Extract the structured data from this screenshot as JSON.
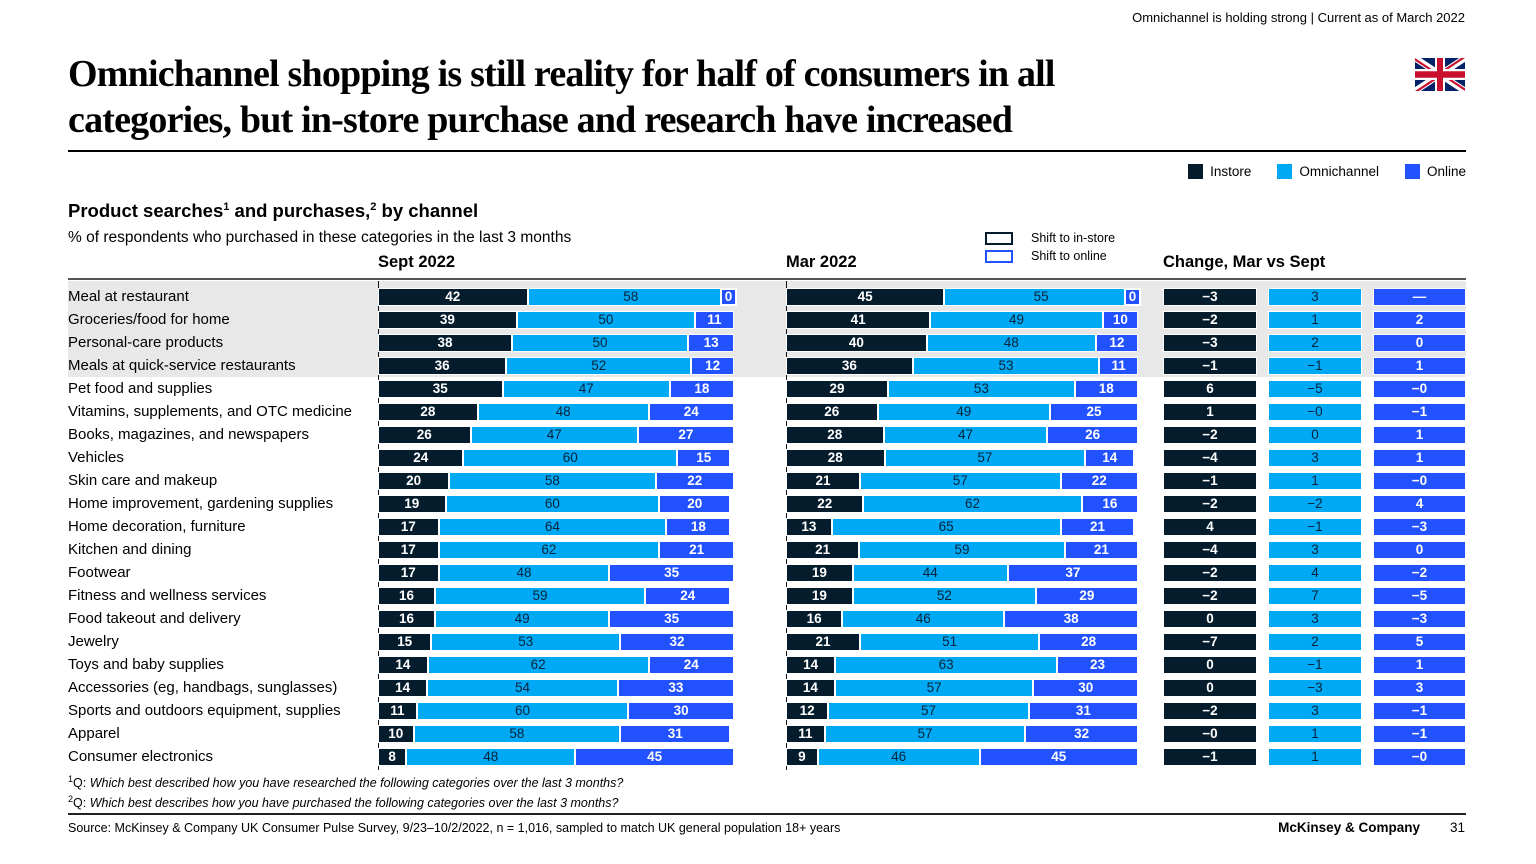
{
  "colors": {
    "instore": "#051c2c",
    "omnichannel": "#00a9f4",
    "online": "#2251ff",
    "band": "#e8e8e8"
  },
  "header": {
    "note": "Omnichannel is holding strong | Current as of March 2022",
    "title_line1": "Omnichannel shopping is still reality for half of consumers in all",
    "title_line2": "categories, but in-store purchase and research have increased",
    "flag": "uk-flag"
  },
  "legend": {
    "items": [
      {
        "label": "Instore"
      },
      {
        "label": "Omnichannel"
      },
      {
        "label": "Online"
      }
    ]
  },
  "shift_legend": {
    "items": [
      {
        "label": "Shift to in-store"
      },
      {
        "label": "Shift to online"
      }
    ]
  },
  "chart": {
    "heading_part1": "Product searches",
    "heading_sup1": "1",
    "heading_part2": " and purchases,",
    "heading_sup2": "2",
    "heading_part3": " by channel",
    "subtitle": "% of respondents who purchased in these categories in the last 3 months",
    "col_sept": "Sept 2022",
    "col_mar": "Mar 2022",
    "col_change": "Change, Mar vs Sept"
  },
  "chart_data": {
    "type": "bar",
    "orientation": "horizontal",
    "stacked": true,
    "unit": "%",
    "groups": [
      "Sept 2022",
      "Mar 2022",
      "Change, Mar vs Sept"
    ],
    "series_names": [
      "Instore",
      "Omnichannel",
      "Online"
    ],
    "highlighted_rows": [
      0,
      1,
      2,
      3
    ],
    "rows": [
      {
        "category": "Meal at restaurant",
        "sept": [
          42,
          58,
          0
        ],
        "mar": [
          45,
          55,
          0
        ],
        "change": [
          "−3",
          "3",
          "—"
        ]
      },
      {
        "category": "Groceries/food for home",
        "sept": [
          39,
          50,
          11
        ],
        "mar": [
          41,
          49,
          10
        ],
        "change": [
          "−2",
          "1",
          "2"
        ]
      },
      {
        "category": "Personal-care products",
        "sept": [
          38,
          50,
          13
        ],
        "mar": [
          40,
          48,
          12
        ],
        "change": [
          "−3",
          "2",
          "0"
        ]
      },
      {
        "category": "Meals at quick-service restaurants",
        "sept": [
          36,
          52,
          12
        ],
        "mar": [
          36,
          53,
          11
        ],
        "change": [
          "−1",
          "−1",
          "1"
        ]
      },
      {
        "category": "Pet food and supplies",
        "sept": [
          35,
          47,
          18
        ],
        "mar": [
          29,
          53,
          18
        ],
        "change": [
          "6",
          "−5",
          "−0"
        ]
      },
      {
        "category": "Vitamins, supplements, and OTC medicine",
        "sept": [
          28,
          48,
          24
        ],
        "mar": [
          26,
          49,
          25
        ],
        "change": [
          "1",
          "−0",
          "−1"
        ]
      },
      {
        "category": "Books, magazines, and newspapers",
        "sept": [
          26,
          47,
          27
        ],
        "mar": [
          28,
          47,
          26
        ],
        "change": [
          "−2",
          "0",
          "1"
        ]
      },
      {
        "category": "Vehicles",
        "sept": [
          24,
          60,
          15
        ],
        "mar": [
          28,
          57,
          14
        ],
        "change": [
          "−4",
          "3",
          "1"
        ]
      },
      {
        "category": "Skin care and makeup",
        "sept": [
          20,
          58,
          22
        ],
        "mar": [
          21,
          57,
          22
        ],
        "change": [
          "−1",
          "1",
          "−0"
        ]
      },
      {
        "category": "Home improvement, gardening supplies",
        "sept": [
          19,
          60,
          20
        ],
        "mar": [
          22,
          62,
          16
        ],
        "change": [
          "−2",
          "−2",
          "4"
        ]
      },
      {
        "category": "Home decoration, furniture",
        "sept": [
          17,
          64,
          18
        ],
        "mar": [
          13,
          65,
          21
        ],
        "change": [
          "4",
          "−1",
          "−3"
        ]
      },
      {
        "category": "Kitchen and dining",
        "sept": [
          17,
          62,
          21
        ],
        "mar": [
          21,
          59,
          21
        ],
        "change": [
          "−4",
          "3",
          "0"
        ]
      },
      {
        "category": "Footwear",
        "sept": [
          17,
          48,
          35
        ],
        "mar": [
          19,
          44,
          37
        ],
        "change": [
          "−2",
          "4",
          "−2"
        ]
      },
      {
        "category": "Fitness and wellness services",
        "sept": [
          16,
          59,
          24
        ],
        "mar": [
          19,
          52,
          29
        ],
        "change": [
          "−2",
          "7",
          "−5"
        ]
      },
      {
        "category": "Food takeout and delivery",
        "sept": [
          16,
          49,
          35
        ],
        "mar": [
          16,
          46,
          38
        ],
        "change": [
          "0",
          "3",
          "−3"
        ]
      },
      {
        "category": "Jewelry",
        "sept": [
          15,
          53,
          32
        ],
        "mar": [
          21,
          51,
          28
        ],
        "change": [
          "−7",
          "2",
          "5"
        ]
      },
      {
        "category": "Toys and baby supplies",
        "sept": [
          14,
          62,
          24
        ],
        "mar": [
          14,
          63,
          23
        ],
        "change": [
          "0",
          "−1",
          "1"
        ]
      },
      {
        "category": "Accessories (eg, handbags, sunglasses)",
        "sept": [
          14,
          54,
          33
        ],
        "mar": [
          14,
          57,
          30
        ],
        "change": [
          "0",
          "−3",
          "3"
        ]
      },
      {
        "category": "Sports and outdoors equipment, supplies",
        "sept": [
          11,
          60,
          30
        ],
        "mar": [
          12,
          57,
          31
        ],
        "change": [
          "−2",
          "3",
          "−1"
        ]
      },
      {
        "category": "Apparel",
        "sept": [
          10,
          58,
          31
        ],
        "mar": [
          11,
          57,
          32
        ],
        "change": [
          "−0",
          "1",
          "−1"
        ]
      },
      {
        "category": "Consumer electronics",
        "sept": [
          8,
          48,
          45
        ],
        "mar": [
          9,
          46,
          45
        ],
        "change": [
          "−1",
          "1",
          "−0"
        ]
      }
    ]
  },
  "footnotes": [
    {
      "sup": "1",
      "label": "Q: ",
      "text": "Which best described how you have researched the following categories over the last 3 months?"
    },
    {
      "sup": "2",
      "label": "Q: ",
      "text": "Which best describes how you have purchased the following categories over the last 3 months?"
    }
  ],
  "footer": {
    "source": "Source: McKinsey & Company UK Consumer Pulse Survey, 9/23–10/2/2022, n = 1,016, sampled to match UK general population 18+ years",
    "brand": "McKinsey & Company",
    "page_number": "31"
  }
}
